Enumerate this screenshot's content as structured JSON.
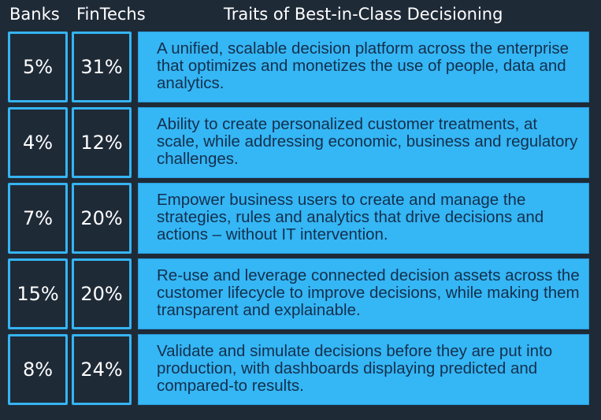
{
  "headers": {
    "banks": "Banks",
    "fintechs": "FinTechs",
    "traits": "Traits of Best-in-Class Decisioning"
  },
  "colors": {
    "background": "#1f2a37",
    "accent": "#35b6f5",
    "trait_text": "#13304d"
  },
  "rows": [
    {
      "banks": "5%",
      "fintechs": "31%",
      "trait": "A unified, scalable decision platform across the enterprise that optimizes and monetizes the use of people, data and analytics."
    },
    {
      "banks": "4%",
      "fintechs": "12%",
      "trait": "Ability to create personalized customer treatments, at scale, while addressing economic, business and regulatory challenges."
    },
    {
      "banks": "7%",
      "fintechs": "20%",
      "trait": "Empower business users to create and manage the strategies, rules and analytics that drive decisions and actions – without IT intervention."
    },
    {
      "banks": "15%",
      "fintechs": "20%",
      "trait": "Re-use and leverage connected decision assets across the customer lifecycle to improve decisions, while making them transparent and explainable."
    },
    {
      "banks": "8%",
      "fintechs": "24%",
      "trait": "Validate and simulate decisions before they are put into production, with dashboards displaying predicted and compared-to results."
    }
  ]
}
